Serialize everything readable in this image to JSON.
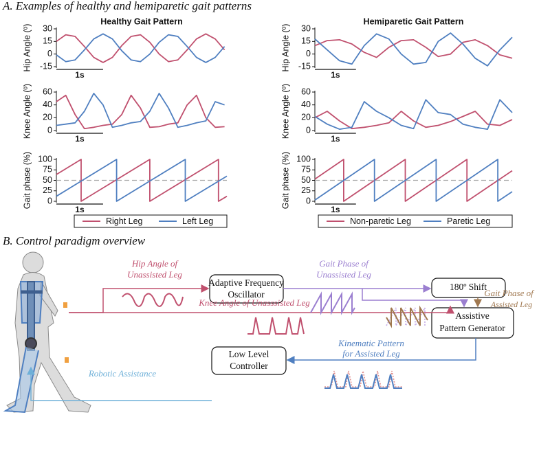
{
  "section_a": {
    "title": "A. Examples of healthy and hemiparetic gait patterns"
  },
  "section_b": {
    "title": "B. Control paradigm overview"
  },
  "chart_data": [
    {
      "type": "line",
      "title": "Healthy Gait Pattern",
      "ylabel": "Hip Angle (º)",
      "xlim": [
        0,
        3.65
      ],
      "ylim": [
        -15,
        30
      ],
      "yticks": [
        -15,
        0,
        15,
        30
      ],
      "scale_bar": {
        "value": 1,
        "label": "1s"
      },
      "series": [
        {
          "name": "Right Leg",
          "color": "#c0506e",
          "x": [
            0,
            0.2,
            0.4,
            0.6,
            0.8,
            1.0,
            1.2,
            1.4,
            1.6,
            1.8,
            2.0,
            2.2,
            2.4,
            2.6,
            2.8,
            3.0,
            3.2,
            3.4,
            3.6
          ],
          "values": [
            15,
            23,
            21,
            9,
            -4,
            -10,
            -4,
            10,
            21,
            23,
            14,
            0,
            -9,
            -7,
            5,
            18,
            24,
            18,
            5
          ]
        },
        {
          "name": "Left Leg",
          "color": "#4f7fc0",
          "x": [
            0,
            0.2,
            0.4,
            0.6,
            0.8,
            1.0,
            1.2,
            1.4,
            1.6,
            1.8,
            2.0,
            2.2,
            2.4,
            2.6,
            2.8,
            3.0,
            3.2,
            3.4,
            3.6
          ],
          "values": [
            -1,
            -9,
            -7,
            5,
            18,
            24,
            18,
            4,
            -7,
            -9,
            0,
            14,
            23,
            21,
            9,
            -4,
            -10,
            -4,
            9
          ]
        }
      ]
    },
    {
      "type": "line",
      "ylabel": "Knee Angle (º)",
      "xlim": [
        0,
        3.65
      ],
      "ylim": [
        0,
        60
      ],
      "yticks": [
        0,
        20,
        40,
        60
      ],
      "scale_bar": {
        "value": 1,
        "label": "1s"
      },
      "series": [
        {
          "name": "Right Leg",
          "color": "#c0506e",
          "x": [
            0,
            0.2,
            0.4,
            0.6,
            0.8,
            1.0,
            1.2,
            1.4,
            1.6,
            1.8,
            2.0,
            2.2,
            2.4,
            2.6,
            2.8,
            3.0,
            3.2,
            3.4,
            3.6
          ],
          "values": [
            45,
            55,
            25,
            3,
            5,
            8,
            10,
            25,
            55,
            35,
            5,
            6,
            10,
            12,
            40,
            55,
            20,
            5,
            6
          ]
        },
        {
          "name": "Left Leg",
          "color": "#4f7fc0",
          "x": [
            0,
            0.2,
            0.4,
            0.6,
            0.8,
            1.0,
            1.2,
            1.4,
            1.6,
            1.8,
            2.0,
            2.2,
            2.4,
            2.6,
            2.8,
            3.0,
            3.2,
            3.4,
            3.6
          ],
          "values": [
            8,
            10,
            12,
            30,
            58,
            40,
            5,
            8,
            12,
            14,
            30,
            58,
            35,
            5,
            8,
            12,
            15,
            45,
            40
          ]
        }
      ]
    },
    {
      "type": "line",
      "ylabel": "Gait phase (%)",
      "xlim": [
        0,
        3.65
      ],
      "ylim": [
        0,
        100
      ],
      "yticks": [
        0,
        25,
        50,
        75,
        100
      ],
      "scale_bar": {
        "value": 1,
        "label": "1s"
      },
      "hline": 50,
      "legend": "bottom",
      "series": [
        {
          "name": "Right Leg",
          "color": "#c0506e",
          "x": [
            0,
            0.53,
            0.53,
            2.0,
            2.0,
            3.47,
            3.47,
            3.65
          ],
          "values": [
            64,
            100,
            0,
            100,
            0,
            100,
            0,
            12
          ]
        },
        {
          "name": "Left Leg",
          "color": "#4f7fc0",
          "x": [
            0,
            1.29,
            1.29,
            2.76,
            2.76,
            3.65
          ],
          "values": [
            12,
            100,
            0,
            100,
            0,
            60
          ]
        }
      ]
    },
    {
      "type": "line",
      "title": "Hemiparetic Gait Pattern",
      "ylabel": "Hip Angle (º)",
      "xlim": [
        0,
        4.8
      ],
      "ylim": [
        -15,
        30
      ],
      "yticks": [
        -15,
        0,
        15,
        30
      ],
      "scale_bar": {
        "value": 1,
        "label": "1s"
      },
      "series": [
        {
          "name": "Non-paretic Leg",
          "color": "#c0506e",
          "x": [
            0,
            0.3,
            0.6,
            0.9,
            1.2,
            1.5,
            1.8,
            2.1,
            2.4,
            2.7,
            3.0,
            3.3,
            3.6,
            3.9,
            4.2,
            4.5,
            4.8
          ],
          "values": [
            10,
            16,
            17,
            12,
            2,
            -4,
            8,
            16,
            17,
            8,
            -3,
            0,
            14,
            17,
            10,
            -1,
            -5
          ]
        },
        {
          "name": "Paretic Leg",
          "color": "#4f7fc0",
          "x": [
            0,
            0.3,
            0.6,
            0.9,
            1.2,
            1.5,
            1.8,
            2.1,
            2.4,
            2.7,
            3.0,
            3.3,
            3.6,
            3.9,
            4.2,
            4.5,
            4.8
          ],
          "values": [
            18,
            5,
            -8,
            -12,
            10,
            24,
            18,
            0,
            -12,
            -10,
            15,
            25,
            12,
            -5,
            -14,
            5,
            20
          ]
        }
      ]
    },
    {
      "type": "line",
      "ylabel": "Knee Angle (º)",
      "xlim": [
        0,
        4.8
      ],
      "ylim": [
        0,
        60
      ],
      "yticks": [
        0,
        20,
        40,
        60
      ],
      "scale_bar": {
        "value": 1,
        "label": "1s"
      },
      "series": [
        {
          "name": "Non-paretic Leg",
          "color": "#c0506e",
          "x": [
            0,
            0.3,
            0.6,
            0.9,
            1.2,
            1.5,
            1.8,
            2.1,
            2.4,
            2.7,
            3.0,
            3.3,
            3.6,
            3.9,
            4.2,
            4.5,
            4.8
          ],
          "values": [
            20,
            30,
            15,
            3,
            5,
            8,
            12,
            30,
            15,
            5,
            8,
            14,
            22,
            30,
            10,
            8,
            17
          ]
        },
        {
          "name": "Paretic Leg",
          "color": "#4f7fc0",
          "x": [
            0,
            0.3,
            0.6,
            0.9,
            1.2,
            1.5,
            1.8,
            2.1,
            2.4,
            2.7,
            3.0,
            3.3,
            3.6,
            3.9,
            4.2,
            4.5,
            4.8
          ],
          "values": [
            22,
            10,
            2,
            5,
            45,
            30,
            20,
            8,
            3,
            48,
            28,
            25,
            10,
            5,
            2,
            48,
            28
          ]
        }
      ]
    },
    {
      "type": "line",
      "ylabel": "Gait phase (%)",
      "xlim": [
        0,
        4.8
      ],
      "ylim": [
        0,
        100
      ],
      "yticks": [
        0,
        25,
        50,
        75,
        100
      ],
      "scale_bar": {
        "value": 1,
        "label": "1s"
      },
      "hline": 50,
      "legend": "bottom",
      "series": [
        {
          "name": "Non-paretic Leg",
          "color": "#c0506e",
          "x": [
            0,
            0.7,
            0.7,
            2.2,
            2.2,
            3.7,
            3.7,
            4.8
          ],
          "values": [
            53,
            100,
            0,
            100,
            0,
            100,
            0,
            73
          ]
        },
        {
          "name": "Paretic Leg",
          "color": "#4f7fc0",
          "x": [
            0,
            1.45,
            1.45,
            2.95,
            2.95,
            4.45,
            4.45,
            4.8
          ],
          "values": [
            3,
            100,
            0,
            100,
            0,
            100,
            0,
            23
          ]
        }
      ]
    }
  ],
  "diagram": {
    "boxes": [
      {
        "label": [
          "Adaptive Frequency",
          "Oscillator"
        ]
      },
      {
        "label": [
          "180º Shift"
        ]
      },
      {
        "label": [
          "Assistive",
          "Pattern Generator"
        ]
      },
      {
        "label": [
          "Low Level",
          "Controller"
        ]
      }
    ],
    "signals": [
      {
        "label": [
          "Hip Angle of",
          "Unassisted Leg"
        ]
      },
      {
        "label": [
          "Gait Phase of",
          "Unassisted Leg"
        ]
      },
      {
        "label": [
          "Gait Phase of",
          "Assisted Leg"
        ]
      },
      {
        "label": [
          "Knee Angle of Unasssisted Leg"
        ]
      },
      {
        "label": [
          "Kinematic Pattern",
          "for Assisted Leg"
        ]
      },
      {
        "label": [
          "Robotic Assistance"
        ]
      }
    ]
  }
}
